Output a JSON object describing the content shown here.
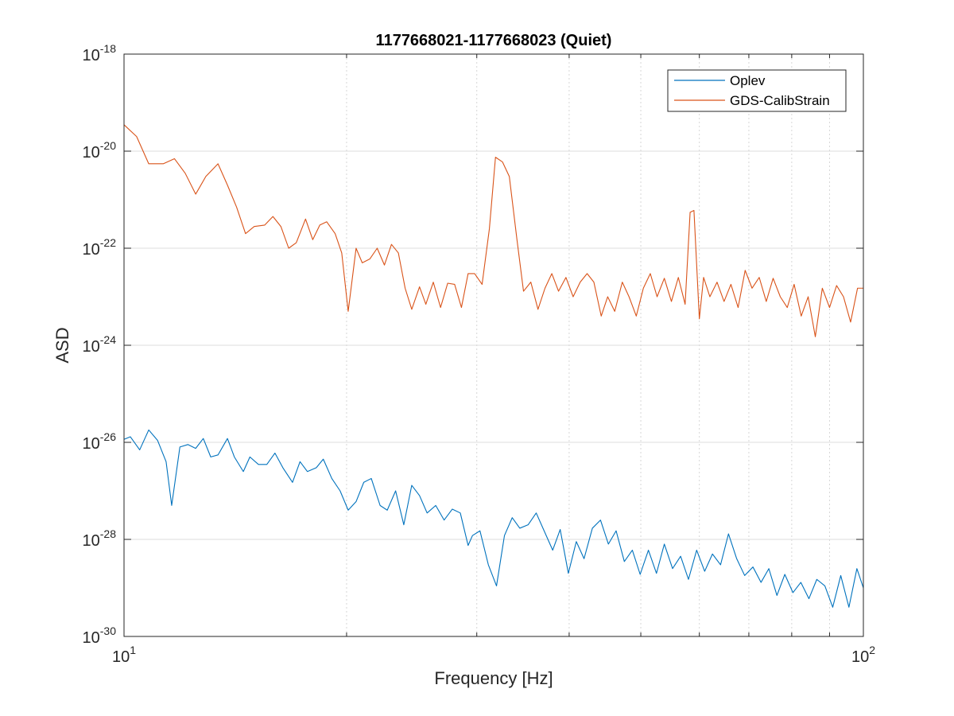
{
  "chart_data": {
    "type": "line",
    "title": "1177668021-1177668023 (Quiet)",
    "xlabel": "Frequency [Hz]",
    "ylabel": "ASD",
    "xscale": "log",
    "yscale": "log",
    "xlim": [
      10,
      100
    ],
    "ylim": [
      1e-30,
      1e-18
    ],
    "grid": true,
    "legend_location": "top-right",
    "x_ticks": [
      {
        "value": 10,
        "base": "10",
        "exp": "1"
      },
      {
        "value": 100,
        "base": "10",
        "exp": "2"
      }
    ],
    "y_ticks": [
      {
        "value": 1e-30,
        "base": "10",
        "exp": "-30"
      },
      {
        "value": 1e-28,
        "base": "10",
        "exp": "-28"
      },
      {
        "value": 1e-26,
        "base": "10",
        "exp": "-26"
      },
      {
        "value": 1e-24,
        "base": "10",
        "exp": "-24"
      },
      {
        "value": 1e-22,
        "base": "10",
        "exp": "-22"
      },
      {
        "value": 1e-20,
        "base": "10",
        "exp": "-20"
      },
      {
        "value": 1e-18,
        "base": "10",
        "exp": "-18"
      }
    ],
    "series": [
      {
        "name": "Oplev",
        "color": "#0072BD",
        "points": [
          [
            10.0,
            1.15e-26
          ],
          [
            10.2,
            1.3e-26
          ],
          [
            10.5,
            7e-27
          ],
          [
            10.8,
            1.8e-26
          ],
          [
            11.1,
            1.1e-26
          ],
          [
            11.4,
            4e-27
          ],
          [
            11.6,
            5e-28
          ],
          [
            11.9,
            8e-27
          ],
          [
            12.2,
            9e-27
          ],
          [
            12.5,
            7.5e-27
          ],
          [
            12.8,
            1.2e-26
          ],
          [
            13.1,
            5e-27
          ],
          [
            13.4,
            5.5e-27
          ],
          [
            13.8,
            1.2e-26
          ],
          [
            14.1,
            5e-27
          ],
          [
            14.5,
            2.5e-27
          ],
          [
            14.8,
            5e-27
          ],
          [
            15.2,
            3.5e-27
          ],
          [
            15.6,
            3.5e-27
          ],
          [
            16.0,
            6e-27
          ],
          [
            16.4,
            3e-27
          ],
          [
            16.9,
            1.5e-27
          ],
          [
            17.3,
            4e-27
          ],
          [
            17.7,
            2.5e-27
          ],
          [
            18.2,
            3e-27
          ],
          [
            18.6,
            4.5e-27
          ],
          [
            19.1,
            1.8e-27
          ],
          [
            19.6,
            1e-27
          ],
          [
            20.1,
            4e-28
          ],
          [
            20.6,
            6e-28
          ],
          [
            21.1,
            1.5e-27
          ],
          [
            21.6,
            1.8e-27
          ],
          [
            22.2,
            5e-28
          ],
          [
            22.7,
            4e-28
          ],
          [
            23.3,
            1e-27
          ],
          [
            23.9,
            2e-28
          ],
          [
            24.5,
            1.3e-27
          ],
          [
            25.1,
            8e-28
          ],
          [
            25.7,
            3.5e-28
          ],
          [
            26.4,
            5e-28
          ],
          [
            27.1,
            2.5e-28
          ],
          [
            27.8,
            4.2e-28
          ],
          [
            28.5,
            3.5e-28
          ],
          [
            29.2,
            7.5e-29
          ],
          [
            29.6,
            1.2e-28
          ],
          [
            30.3,
            1.5e-28
          ],
          [
            31.1,
            3e-29
          ],
          [
            31.9,
            1.1e-29
          ],
          [
            32.7,
            1.2e-28
          ],
          [
            33.5,
            2.8e-28
          ],
          [
            34.3,
            1.7e-28
          ],
          [
            35.2,
            2e-28
          ],
          [
            36.1,
            3.5e-28
          ],
          [
            37.0,
            1.5e-28
          ],
          [
            38.0,
            6e-29
          ],
          [
            38.9,
            1.6e-28
          ],
          [
            39.9,
            2e-29
          ],
          [
            40.9,
            9e-29
          ],
          [
            41.9,
            4e-29
          ],
          [
            43.0,
            1.7e-28
          ],
          [
            44.1,
            2.5e-28
          ],
          [
            45.2,
            8e-29
          ],
          [
            46.3,
            1.5e-28
          ],
          [
            47.5,
            3.5e-29
          ],
          [
            48.7,
            6e-29
          ],
          [
            49.9,
            1.9e-29
          ],
          [
            51.2,
            6e-29
          ],
          [
            52.5,
            2e-29
          ],
          [
            53.8,
            8e-29
          ],
          [
            55.2,
            2.5e-29
          ],
          [
            56.6,
            4.5e-29
          ],
          [
            58.0,
            1.5e-29
          ],
          [
            59.5,
            6e-29
          ],
          [
            61.0,
            2.2e-29
          ],
          [
            62.5,
            5e-29
          ],
          [
            64.1,
            3e-29
          ],
          [
            65.7,
            1.3e-28
          ],
          [
            67.4,
            4e-29
          ],
          [
            69.1,
            1.8e-29
          ],
          [
            70.9,
            2.7e-29
          ],
          [
            72.7,
            1.3e-29
          ],
          [
            74.5,
            2.5e-29
          ],
          [
            76.4,
            7e-30
          ],
          [
            78.3,
            1.9e-29
          ],
          [
            80.3,
            8e-30
          ],
          [
            82.3,
            1.3e-29
          ],
          [
            84.4,
            6e-30
          ],
          [
            86.5,
            1.5e-29
          ],
          [
            88.7,
            1.1e-29
          ],
          [
            90.9,
            4e-30
          ],
          [
            93.2,
            1.8e-29
          ],
          [
            95.6,
            4e-30
          ],
          [
            98.0,
            2.5e-29
          ],
          [
            100.0,
            1e-29
          ]
        ]
      },
      {
        "name": "GDS-CalibStrain",
        "color": "#D95319",
        "points": [
          [
            10.0,
            3.5e-20
          ],
          [
            10.4,
            2e-20
          ],
          [
            10.8,
            5.5e-21
          ],
          [
            11.3,
            5.5e-21
          ],
          [
            11.7,
            7e-21
          ],
          [
            12.1,
            3.5e-21
          ],
          [
            12.5,
            1.3e-21
          ],
          [
            12.9,
            3e-21
          ],
          [
            13.4,
            5.5e-21
          ],
          [
            13.8,
            2e-21
          ],
          [
            14.2,
            7e-22
          ],
          [
            14.6,
            2e-22
          ],
          [
            15.0,
            2.8e-22
          ],
          [
            15.5,
            3e-22
          ],
          [
            15.9,
            4.5e-22
          ],
          [
            16.3,
            2.8e-22
          ],
          [
            16.7,
            1e-22
          ],
          [
            17.1,
            1.3e-22
          ],
          [
            17.6,
            4e-22
          ],
          [
            18.0,
            1.5e-22
          ],
          [
            18.4,
            3e-22
          ],
          [
            18.8,
            3.5e-22
          ],
          [
            19.3,
            2e-22
          ],
          [
            19.7,
            8e-23
          ],
          [
            20.1,
            5e-24
          ],
          [
            20.6,
            1e-22
          ],
          [
            21.0,
            5e-23
          ],
          [
            21.5,
            6e-23
          ],
          [
            22.0,
            1e-22
          ],
          [
            22.5,
            4.5e-23
          ],
          [
            23.0,
            1.2e-22
          ],
          [
            23.5,
            8e-23
          ],
          [
            24.0,
            1.5e-23
          ],
          [
            24.5,
            5.5e-24
          ],
          [
            25.1,
            1.6e-23
          ],
          [
            25.6,
            7e-24
          ],
          [
            26.2,
            2e-23
          ],
          [
            26.8,
            6e-24
          ],
          [
            27.4,
            1.9e-23
          ],
          [
            28.0,
            1.8e-23
          ],
          [
            28.6,
            6e-24
          ],
          [
            29.2,
            3e-23
          ],
          [
            29.8,
            3e-23
          ],
          [
            30.5,
            1.8e-23
          ],
          [
            31.2,
            2.5e-22
          ],
          [
            31.8,
            7.5e-21
          ],
          [
            32.5,
            6e-21
          ],
          [
            33.2,
            3e-21
          ],
          [
            34.0,
            1.5e-22
          ],
          [
            34.7,
            1.3e-23
          ],
          [
            35.5,
            2e-23
          ],
          [
            36.3,
            5.5e-24
          ],
          [
            37.1,
            1.5e-23
          ],
          [
            37.9,
            3e-23
          ],
          [
            38.7,
            1.3e-23
          ],
          [
            39.6,
            2.5e-23
          ],
          [
            40.5,
            1e-23
          ],
          [
            41.4,
            2e-23
          ],
          [
            42.3,
            3e-23
          ],
          [
            43.2,
            2e-23
          ],
          [
            44.2,
            4e-24
          ],
          [
            45.1,
            1e-23
          ],
          [
            46.1,
            5e-24
          ],
          [
            47.2,
            2e-23
          ],
          [
            48.2,
            1e-23
          ],
          [
            49.3,
            4e-24
          ],
          [
            50.4,
            1.5e-23
          ],
          [
            51.5,
            3e-23
          ],
          [
            52.6,
            1e-23
          ],
          [
            53.8,
            2.4e-23
          ],
          [
            55.0,
            8e-24
          ],
          [
            56.2,
            2.5e-23
          ],
          [
            57.4,
            7e-24
          ],
          [
            58.3,
            5.5e-22
          ],
          [
            59.0,
            6e-22
          ],
          [
            60.0,
            3.5e-24
          ],
          [
            60.8,
            2.5e-23
          ],
          [
            62.0,
            1e-23
          ],
          [
            63.4,
            2e-23
          ],
          [
            64.8,
            8e-24
          ],
          [
            66.2,
            1.8e-23
          ],
          [
            67.7,
            6e-24
          ],
          [
            69.2,
            3.5e-23
          ],
          [
            70.7,
            1.5e-23
          ],
          [
            72.3,
            2.5e-23
          ],
          [
            73.9,
            8e-24
          ],
          [
            75.5,
            2.4e-23
          ],
          [
            77.2,
            1e-23
          ],
          [
            78.9,
            6e-24
          ],
          [
            80.6,
            1.8e-23
          ],
          [
            82.4,
            4e-24
          ],
          [
            84.2,
            1e-23
          ],
          [
            86.1,
            1.5e-24
          ],
          [
            88.0,
            1.5e-23
          ],
          [
            90.0,
            6e-24
          ],
          [
            92.0,
            1.7e-23
          ],
          [
            94.0,
            1e-23
          ],
          [
            96.1,
            3e-24
          ],
          [
            98.2,
            1.5e-23
          ],
          [
            100.0,
            1.5e-23
          ]
        ]
      }
    ]
  }
}
